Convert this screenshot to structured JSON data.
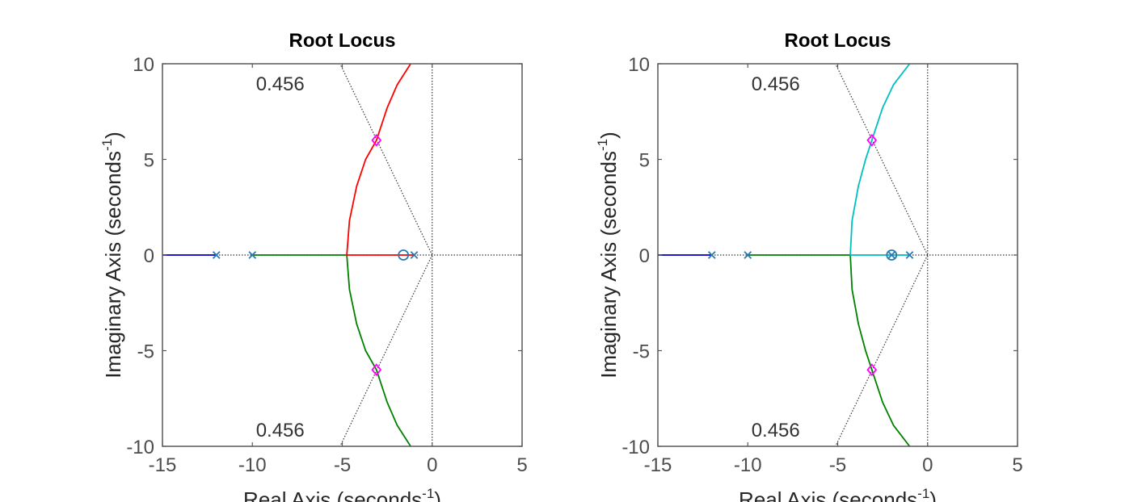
{
  "chart_data": [
    {
      "type": "line",
      "title": "Root Locus",
      "xlabel": "Real Axis (seconds",
      "ylabel": "Imaginary Axis (seconds",
      "unit_exponent": "-1",
      "xlim": [
        -15,
        5
      ],
      "ylim": [
        -10,
        10
      ],
      "xticks": [
        "-15",
        "-10",
        "-5",
        "0",
        "5"
      ],
      "yticks": [
        "10",
        "5",
        "0",
        "-5",
        "-10"
      ],
      "damping_label": "0.456",
      "damping_ratio": 0.456,
      "poles": [
        [
          -12,
          0
        ],
        [
          -10,
          0
        ],
        [
          -1,
          0
        ]
      ],
      "zeros": [
        [
          -1.6,
          0
        ]
      ],
      "design_points": [
        [
          -3.1,
          6.0
        ],
        [
          -3.1,
          -6.0
        ]
      ],
      "series": [
        {
          "color": "#0000cc",
          "points": [
            [
              -15,
              0
            ],
            [
              -12,
              0
            ]
          ]
        },
        {
          "color": "#008000",
          "points": [
            [
              -10,
              0
            ],
            [
              -4.75,
              0
            ],
            [
              -4.6,
              -1.8
            ],
            [
              -4.2,
              -3.6
            ],
            [
              -3.7,
              -5.0
            ],
            [
              -3.1,
              -6.0
            ],
            [
              -2.5,
              -7.7
            ],
            [
              -1.95,
              -8.9
            ],
            [
              -1.2,
              -10
            ]
          ]
        },
        {
          "color": "#ff0000",
          "points": [
            [
              -1.0,
              0
            ],
            [
              -4.75,
              0
            ],
            [
              -4.6,
              1.8
            ],
            [
              -4.2,
              3.6
            ],
            [
              -3.7,
              5.0
            ],
            [
              -3.1,
              6.0
            ],
            [
              -2.5,
              7.7
            ],
            [
              -1.95,
              8.9
            ],
            [
              -1.2,
              10
            ]
          ]
        }
      ]
    },
    {
      "type": "line",
      "title": "Root Locus",
      "xlabel": "Real Axis (seconds",
      "ylabel": "Imaginary Axis (seconds",
      "unit_exponent": "-1",
      "xlim": [
        -15,
        5
      ],
      "ylim": [
        -10,
        10
      ],
      "xticks": [
        "-15",
        "-10",
        "-5",
        "0",
        "5"
      ],
      "yticks": [
        "10",
        "5",
        "0",
        "-5",
        "-10"
      ],
      "damping_label": "0.456",
      "damping_ratio": 0.456,
      "poles": [
        [
          -12,
          0
        ],
        [
          -10,
          0
        ],
        [
          -2,
          0
        ],
        [
          -1,
          0
        ]
      ],
      "zeros": [
        [
          -2,
          0
        ]
      ],
      "design_points": [
        [
          -3.1,
          6.0
        ],
        [
          -3.1,
          -6.0
        ]
      ],
      "series": [
        {
          "color": "#0000cc",
          "points": [
            [
              -15,
              0
            ],
            [
              -12,
              0
            ]
          ]
        },
        {
          "color": "#008000",
          "points": [
            [
              -10,
              0
            ],
            [
              -4.3,
              0
            ],
            [
              -4.2,
              -1.8
            ],
            [
              -3.85,
              -3.6
            ],
            [
              -3.45,
              -5.0
            ],
            [
              -3.1,
              -6.0
            ],
            [
              -2.5,
              -7.7
            ],
            [
              -1.9,
              -8.9
            ],
            [
              -1.0,
              -10
            ]
          ]
        },
        {
          "color": "#00bfbf",
          "points": [
            [
              -1.0,
              0
            ],
            [
              -4.3,
              0
            ],
            [
              -4.2,
              1.8
            ],
            [
              -3.85,
              3.6
            ],
            [
              -3.45,
              5.0
            ],
            [
              -3.1,
              6.0
            ],
            [
              -2.5,
              7.7
            ],
            [
              -1.9,
              8.9
            ],
            [
              -1.0,
              10
            ]
          ]
        }
      ]
    }
  ],
  "colors": {
    "axes": "#595959",
    "grid": "#333333",
    "marker": "#2a7ab0",
    "design_marker": "#ff00ff"
  }
}
